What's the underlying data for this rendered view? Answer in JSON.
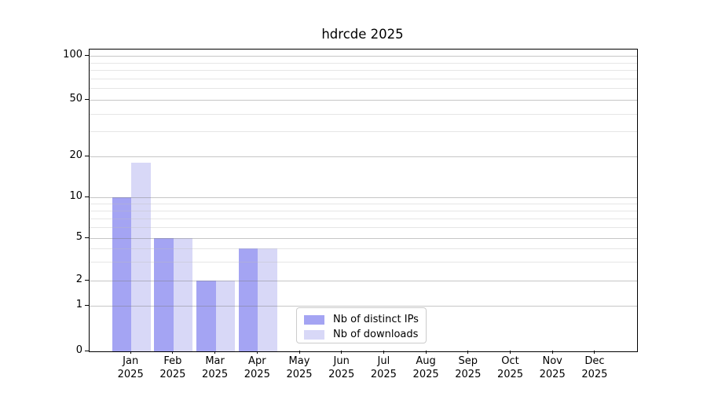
{
  "chart_data": {
    "type": "bar",
    "title": "hdrcde 2025",
    "categories": [
      "Jan 2025",
      "Feb 2025",
      "Mar 2025",
      "Apr 2025",
      "May 2025",
      "Jun 2025",
      "Jul 2025",
      "Aug 2025",
      "Sep 2025",
      "Oct 2025",
      "Nov 2025",
      "Dec 2025"
    ],
    "series": [
      {
        "name": "Nb of distinct IPs",
        "color": "#a4a4f3",
        "values": [
          10,
          5,
          2,
          4,
          0,
          0,
          0,
          0,
          0,
          0,
          0,
          0
        ]
      },
      {
        "name": "Nb of downloads",
        "color": "#d8d8f7",
        "values": [
          18,
          5,
          2,
          4,
          0,
          0,
          0,
          0,
          0,
          0,
          0,
          0
        ]
      }
    ],
    "xlabel": "",
    "ylabel": "",
    "yscale": "log",
    "ylim": [
      0,
      100
    ],
    "yticks": [
      0,
      1,
      2,
      5,
      10,
      20,
      50,
      100
    ],
    "grid": "horizontal major and log-minor gridlines",
    "legend_position": "inside lower-center",
    "bar_layout": "paired side-by-side per month"
  },
  "legend": {
    "items": [
      {
        "label": "Nb of distinct IPs"
      },
      {
        "label": "Nb of downloads"
      }
    ]
  }
}
